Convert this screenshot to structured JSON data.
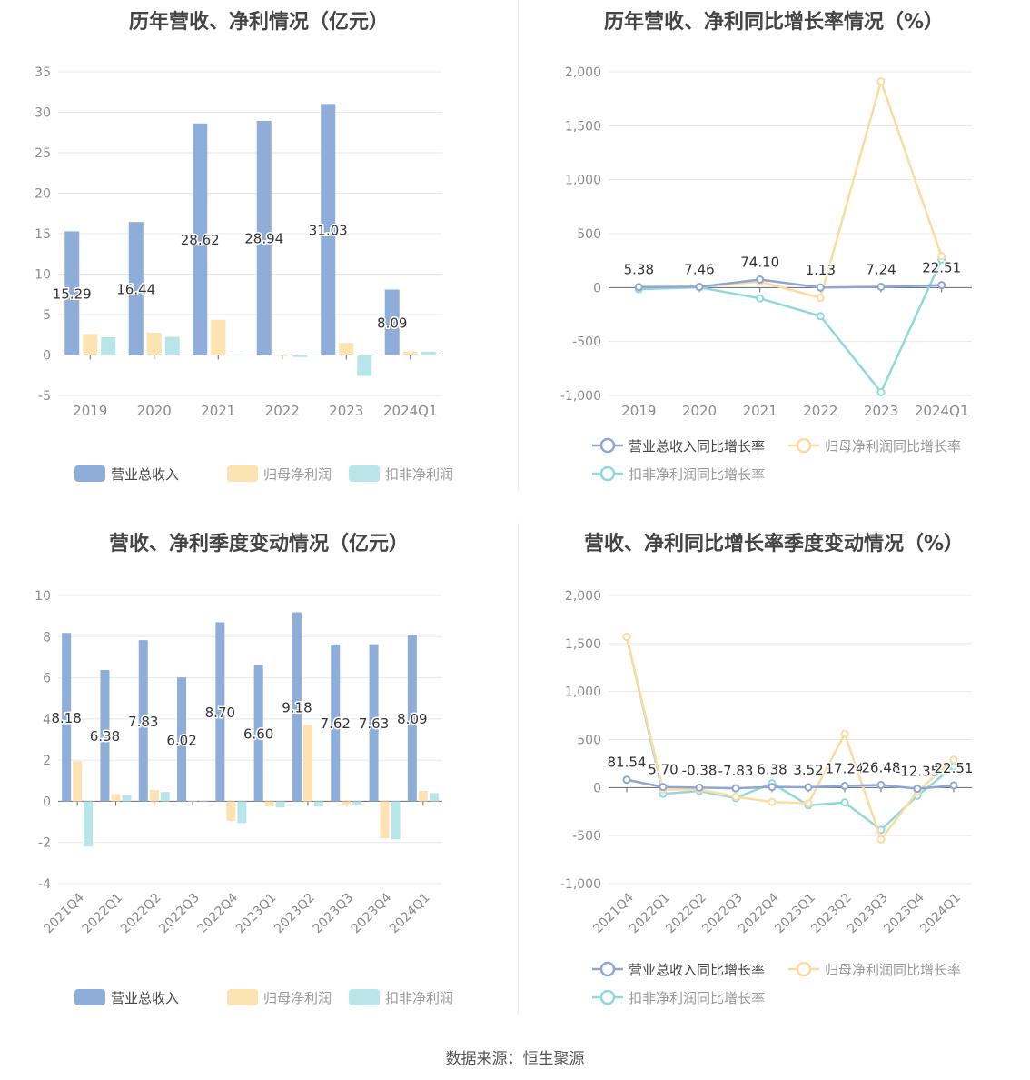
{
  "colors": {
    "revenue": "#8eadd9",
    "net_profit": "#fde3b2",
    "deducted_profit": "#b8e6e8",
    "revenue_line": "#8ea6d3",
    "net_line": "#fcdba0",
    "deducted_line": "#8fd9de"
  },
  "footer": {
    "source": "数据来源：恒生聚源"
  },
  "chart_data": [
    {
      "id": "annual-bar",
      "type": "bar",
      "title": "历年营收、净利情况（亿元）",
      "categories": [
        "2019",
        "2020",
        "2021",
        "2022",
        "2023",
        "2024Q1"
      ],
      "ylim": [
        -5,
        35
      ],
      "yticks": [
        -5,
        0,
        5,
        10,
        15,
        20,
        25,
        30,
        35
      ],
      "series": [
        {
          "name": "营业总收入",
          "color": "#8eadd9",
          "values": [
            15.29,
            16.44,
            28.62,
            28.94,
            31.03,
            8.09
          ],
          "labels": [
            "15.29",
            "16.44",
            "28.62",
            "28.94",
            "31.03",
            "8.09"
          ]
        },
        {
          "name": "归母净利润",
          "color": "#fde3b2",
          "values": [
            2.6,
            2.75,
            4.35,
            -0.1,
            1.5,
            0.45
          ]
        },
        {
          "name": "扣非净利润",
          "color": "#b8e6e8",
          "values": [
            2.2,
            2.25,
            0.05,
            -0.25,
            -2.6,
            0.4
          ]
        }
      ]
    },
    {
      "id": "annual-line",
      "type": "line",
      "title": "历年营收、净利同比增长率情况（%）",
      "categories": [
        "2019",
        "2020",
        "2021",
        "2022",
        "2023",
        "2024Q1"
      ],
      "ylim": [
        -1000,
        2000
      ],
      "yticks": [
        "-1,000",
        "-500",
        "0",
        "500",
        "1,000",
        "1,500",
        "2,000"
      ],
      "series": [
        {
          "name": "营业总收入同比增长率",
          "color": "#8ea6d3",
          "values": [
            5.38,
            7.46,
            74.1,
            1.13,
            7.24,
            22.51
          ],
          "labels": [
            "5.38",
            "7.46",
            "74.10",
            "1.13",
            "7.24",
            "22.51"
          ]
        },
        {
          "name": "归母净利润同比增长率",
          "color": "#fcdba0",
          "values": [
            5,
            6,
            55,
            -95,
            1910,
            290
          ]
        },
        {
          "name": "扣非净利润同比增长率",
          "color": "#8fd9de",
          "values": [
            -15,
            2,
            -100,
            -265,
            -970,
            260
          ]
        }
      ]
    },
    {
      "id": "quarter-bar",
      "type": "bar",
      "title": "营收、净利季度变动情况（亿元）",
      "categories": [
        "2021Q4",
        "2022Q1",
        "2022Q2",
        "2022Q3",
        "2022Q4",
        "2023Q1",
        "2023Q2",
        "2023Q3",
        "2023Q4",
        "2024Q1"
      ],
      "ylim": [
        -4,
        10
      ],
      "yticks": [
        -4,
        -2,
        0,
        2,
        4,
        6,
        8,
        10
      ],
      "series": [
        {
          "name": "营业总收入",
          "color": "#8eadd9",
          "values": [
            8.18,
            6.38,
            7.83,
            6.02,
            8.7,
            6.6,
            9.18,
            7.62,
            7.63,
            8.09
          ],
          "labels": [
            "8.18",
            "6.38",
            "7.83",
            "6.02",
            "8.70",
            "6.60",
            "9.18",
            "7.62",
            "7.63",
            "8.09"
          ]
        },
        {
          "name": "归母净利润",
          "color": "#fde3b2",
          "values": [
            1.95,
            0.35,
            0.55,
            0.02,
            -0.95,
            -0.25,
            3.7,
            -0.2,
            -1.8,
            0.5
          ]
        },
        {
          "name": "扣非净利润",
          "color": "#b8e6e8",
          "values": [
            -2.2,
            0.3,
            0.45,
            0.0,
            -1.05,
            -0.3,
            -0.25,
            -0.2,
            -1.85,
            0.4
          ]
        }
      ]
    },
    {
      "id": "quarter-line",
      "type": "line",
      "title": "营收、净利同比增长率季度变动情况（%）",
      "categories": [
        "2021Q4",
        "2022Q1",
        "2022Q2",
        "2022Q3",
        "2022Q4",
        "2023Q1",
        "2023Q2",
        "2023Q3",
        "2023Q4",
        "2024Q1"
      ],
      "ylim": [
        -1000,
        2000
      ],
      "yticks": [
        "-1,000",
        "-500",
        "0",
        "500",
        "1,000",
        "1,500",
        "2,000"
      ],
      "series": [
        {
          "name": "营业总收入同比增长率",
          "color": "#8ea6d3",
          "values": [
            81.54,
            5.7,
            -0.38,
            -7.83,
            6.38,
            3.52,
            17.24,
            26.48,
            -12.35,
            22.51
          ],
          "labels": [
            "81.54",
            "5.70",
            "-0.38",
            "-7.83",
            "6.38",
            "3.52",
            "17.24",
            "26.48",
            "-12.35",
            "22.51"
          ]
        },
        {
          "name": "归母净利润同比增长率",
          "color": "#fcdba0",
          "values": [
            1570,
            -20,
            -20,
            -95,
            -150,
            -165,
            560,
            -540,
            -40,
            290
          ]
        },
        {
          "name": "扣非净利润同比增长率",
          "color": "#8fd9de",
          "values": [
            1570,
            -65,
            -35,
            -110,
            45,
            -185,
            -155,
            -440,
            -85,
            220
          ]
        }
      ]
    }
  ]
}
